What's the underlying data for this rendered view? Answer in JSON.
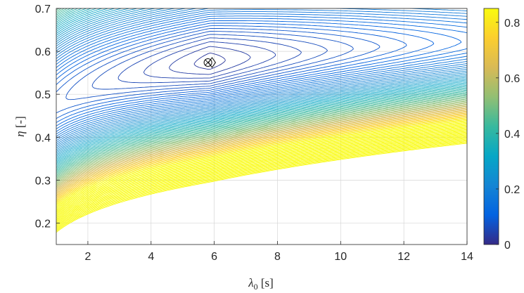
{
  "chart_data": {
    "type": "contour",
    "xlabel": {
      "symbol": "λ",
      "subscript": "0",
      "unit": " [s]"
    },
    "ylabel": {
      "symbol": "η",
      "unit": " [-]"
    },
    "xlim": [
      1,
      14
    ],
    "ylim": [
      0.15,
      0.7
    ],
    "x_ticks": [
      2,
      4,
      6,
      8,
      10,
      12,
      14
    ],
    "y_ticks": [
      0.2,
      0.3,
      0.4,
      0.5,
      0.6,
      0.7
    ],
    "colorbar": {
      "colormap": "parula",
      "range": [
        0,
        0.85
      ],
      "ticks": [
        0,
        0.2,
        0.4,
        0.6,
        0.8
      ]
    },
    "grid": true,
    "minimum_markers": [
      {
        "symbol": "circle-x",
        "x": 5.8,
        "y": 0.574
      },
      {
        "symbol": "diamond",
        "x": 5.93,
        "y": 0.574
      }
    ]
  }
}
